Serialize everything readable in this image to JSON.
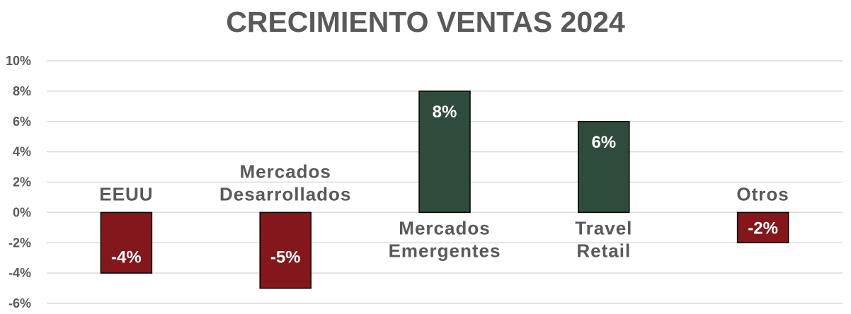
{
  "chart_data": {
    "type": "bar",
    "title": "CRECIMIENTO VENTAS 2024",
    "categories": [
      [
        "EEUU"
      ],
      [
        "Mercados",
        "Desarrollados"
      ],
      [
        "Mercados",
        "Emergentes"
      ],
      [
        "Travel",
        "Retail"
      ],
      [
        "Otros"
      ]
    ],
    "values": [
      -4,
      -5,
      8,
      6,
      -2
    ],
    "data_labels": [
      "-4%",
      "-5%",
      "8%",
      "6%",
      "-2%"
    ],
    "ylim": [
      -6,
      10
    ],
    "yticks": [
      10,
      8,
      6,
      4,
      2,
      0,
      -2,
      -4,
      -6
    ],
    "ytick_labels": [
      "10%",
      "8%",
      "6%",
      "4%",
      "2%",
      "0%",
      "-2%",
      "-4%",
      "-6%"
    ],
    "xlabel": "",
    "ylabel": "",
    "grid": true,
    "legend": "none",
    "colors": {
      "positive": "#2f4b3c",
      "negative": "#84171b",
      "text": "#595959",
      "grid": "#d9d9d9"
    }
  }
}
